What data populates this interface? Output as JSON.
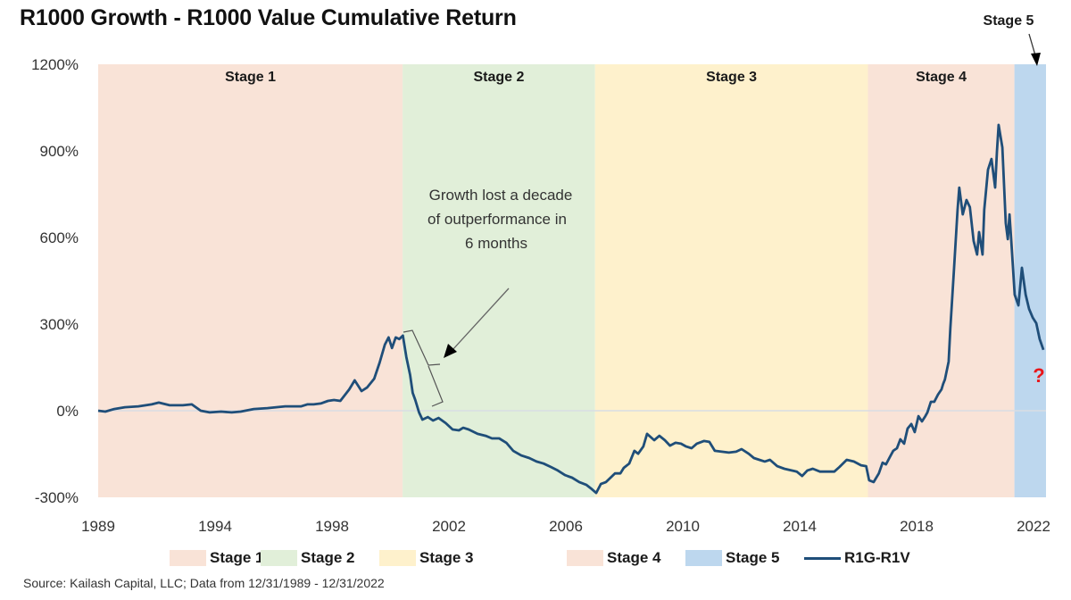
{
  "chart_data": {
    "type": "line",
    "title": "R1000 Growth - R1000 Value Cumulative Return",
    "xlabel": "",
    "ylabel": "",
    "ylim": [
      -300,
      1200
    ],
    "xlim": [
      1989,
      2022
    ],
    "yticks": [
      "1200%",
      "900%",
      "600%",
      "300%",
      "0%",
      "-300%"
    ],
    "ytick_values": [
      1200,
      900,
      600,
      300,
      0,
      -300
    ],
    "xticks": [
      "1989",
      "1994",
      "1998",
      "2002",
      "2006",
      "2010",
      "2014",
      "2018",
      "2022"
    ],
    "grid": false,
    "zero_line": true,
    "legend_position": "bottom",
    "stages": [
      {
        "name": "Stage 1",
        "start": 1989.0,
        "end": 1999.6,
        "color": "#f9e3d7"
      },
      {
        "name": "Stage 2",
        "start": 1999.6,
        "end": 2006.3,
        "color": "#e1efd9"
      },
      {
        "name": "Stage 3",
        "start": 2006.3,
        "end": 2015.8,
        "color": "#fef1cc"
      },
      {
        "name": "Stage 4",
        "start": 2015.8,
        "end": 2020.9,
        "color": "#f9e3d7"
      },
      {
        "name": "Stage 5",
        "start": 2020.9,
        "end": 2022.0,
        "color": "#bdd7ee"
      }
    ],
    "series": [
      {
        "name": "R1G-R1V",
        "color": "#1f4e79",
        "points": [
          [
            1989.0,
            0
          ],
          [
            1989.25,
            -3
          ],
          [
            1989.56,
            6
          ],
          [
            1989.93,
            12
          ],
          [
            1990.4,
            15
          ],
          [
            1990.86,
            22
          ],
          [
            1991.11,
            28
          ],
          [
            1991.49,
            19
          ],
          [
            1991.95,
            19
          ],
          [
            1992.26,
            22
          ],
          [
            1992.57,
            0
          ],
          [
            1992.88,
            -6
          ],
          [
            1993.28,
            -3
          ],
          [
            1993.65,
            -6
          ],
          [
            1993.96,
            -3
          ],
          [
            1994.42,
            6
          ],
          [
            1994.89,
            9
          ],
          [
            1995.2,
            12
          ],
          [
            1995.51,
            15
          ],
          [
            1995.82,
            15
          ],
          [
            1996.07,
            15
          ],
          [
            1996.28,
            22
          ],
          [
            1996.5,
            22
          ],
          [
            1996.75,
            25
          ],
          [
            1997.0,
            34
          ],
          [
            1997.21,
            37
          ],
          [
            1997.43,
            34
          ],
          [
            1997.74,
            74
          ],
          [
            1997.93,
            105
          ],
          [
            1998.05,
            87
          ],
          [
            1998.17,
            68
          ],
          [
            1998.36,
            80
          ],
          [
            1998.61,
            111
          ],
          [
            1998.8,
            167
          ],
          [
            1998.98,
            229
          ],
          [
            1999.11,
            254
          ],
          [
            1999.23,
            217
          ],
          [
            1999.36,
            254
          ],
          [
            1999.48,
            248
          ],
          [
            1999.61,
            260
          ],
          [
            1999.73,
            186
          ],
          [
            1999.86,
            124
          ],
          [
            1999.95,
            62
          ],
          [
            2000.04,
            37
          ],
          [
            2000.17,
            -6
          ],
          [
            2000.29,
            -31
          ],
          [
            2000.48,
            -22
          ],
          [
            2000.66,
            -34
          ],
          [
            2000.85,
            -25
          ],
          [
            2001.1,
            -43
          ],
          [
            2001.34,
            -65
          ],
          [
            2001.56,
            -68
          ],
          [
            2001.71,
            -59
          ],
          [
            2001.9,
            -65
          ],
          [
            2002.21,
            -80
          ],
          [
            2002.49,
            -87
          ],
          [
            2002.71,
            -96
          ],
          [
            2002.96,
            -96
          ],
          [
            2003.21,
            -111
          ],
          [
            2003.45,
            -139
          ],
          [
            2003.73,
            -155
          ],
          [
            2004.01,
            -164
          ],
          [
            2004.26,
            -176
          ],
          [
            2004.51,
            -183
          ],
          [
            2004.76,
            -195
          ],
          [
            2005.0,
            -207
          ],
          [
            2005.25,
            -223
          ],
          [
            2005.5,
            -232
          ],
          [
            2005.75,
            -247
          ],
          [
            2006.0,
            -257
          ],
          [
            2006.19,
            -272
          ],
          [
            2006.34,
            -285
          ],
          [
            2006.5,
            -254
          ],
          [
            2006.68,
            -247
          ],
          [
            2006.87,
            -229
          ],
          [
            2006.99,
            -217
          ],
          [
            2007.18,
            -217
          ],
          [
            2007.3,
            -198
          ],
          [
            2007.49,
            -183
          ],
          [
            2007.67,
            -139
          ],
          [
            2007.8,
            -149
          ],
          [
            2007.98,
            -124
          ],
          [
            2008.11,
            -80
          ],
          [
            2008.36,
            -102
          ],
          [
            2008.54,
            -87
          ],
          [
            2008.73,
            -102
          ],
          [
            2008.91,
            -121
          ],
          [
            2009.1,
            -111
          ],
          [
            2009.29,
            -114
          ],
          [
            2009.47,
            -124
          ],
          [
            2009.66,
            -130
          ],
          [
            2009.84,
            -114
          ],
          [
            2010.09,
            -105
          ],
          [
            2010.28,
            -108
          ],
          [
            2010.47,
            -139
          ],
          [
            2010.71,
            -142
          ],
          [
            2010.96,
            -145
          ],
          [
            2011.21,
            -142
          ],
          [
            2011.4,
            -133
          ],
          [
            2011.65,
            -149
          ],
          [
            2011.83,
            -164
          ],
          [
            2012.02,
            -170
          ],
          [
            2012.21,
            -176
          ],
          [
            2012.39,
            -170
          ],
          [
            2012.64,
            -192
          ],
          [
            2012.89,
            -201
          ],
          [
            2013.14,
            -207
          ],
          [
            2013.32,
            -211
          ],
          [
            2013.51,
            -226
          ],
          [
            2013.69,
            -207
          ],
          [
            2013.88,
            -201
          ],
          [
            2014.13,
            -211
          ],
          [
            2014.38,
            -211
          ],
          [
            2014.63,
            -211
          ],
          [
            2014.81,
            -195
          ],
          [
            2015.06,
            -170
          ],
          [
            2015.31,
            -176
          ],
          [
            2015.56,
            -189
          ],
          [
            2015.74,
            -192
          ],
          [
            2015.84,
            -241
          ],
          [
            2016.0,
            -247
          ],
          [
            2016.18,
            -217
          ],
          [
            2016.31,
            -180
          ],
          [
            2016.43,
            -186
          ],
          [
            2016.56,
            -161
          ],
          [
            2016.68,
            -139
          ],
          [
            2016.81,
            -130
          ],
          [
            2016.93,
            -99
          ],
          [
            2017.06,
            -114
          ],
          [
            2017.18,
            -62
          ],
          [
            2017.31,
            -46
          ],
          [
            2017.43,
            -74
          ],
          [
            2017.56,
            -19
          ],
          [
            2017.68,
            -37
          ],
          [
            2017.8,
            -19
          ],
          [
            2017.87,
            -6
          ],
          [
            2017.99,
            31
          ],
          [
            2018.11,
            31
          ],
          [
            2018.24,
            56
          ],
          [
            2018.36,
            74
          ],
          [
            2018.42,
            93
          ],
          [
            2018.48,
            108
          ],
          [
            2018.61,
            170
          ],
          [
            2018.67,
            285
          ],
          [
            2018.8,
            495
          ],
          [
            2018.92,
            696
          ],
          [
            2018.98,
            773
          ],
          [
            2019.1,
            680
          ],
          [
            2019.23,
            730
          ],
          [
            2019.35,
            705
          ],
          [
            2019.48,
            588
          ],
          [
            2019.6,
            541
          ],
          [
            2019.67,
            619
          ],
          [
            2019.79,
            541
          ],
          [
            2019.85,
            696
          ],
          [
            2019.98,
            835
          ],
          [
            2020.1,
            872
          ],
          [
            2020.23,
            773
          ],
          [
            2020.29,
            897
          ],
          [
            2020.35,
            990
          ],
          [
            2020.48,
            912
          ],
          [
            2020.6,
            650
          ],
          [
            2020.67,
            594
          ],
          [
            2020.73,
            680
          ],
          [
            2020.79,
            588
          ],
          [
            2020.91,
            402
          ],
          [
            2021.04,
            365
          ],
          [
            2021.16,
            495
          ],
          [
            2021.29,
            402
          ],
          [
            2021.41,
            353
          ],
          [
            2021.54,
            322
          ],
          [
            2021.66,
            303
          ],
          [
            2021.78,
            248
          ],
          [
            2021.91,
            211
          ]
        ]
      }
    ],
    "annotations": {
      "callout_lines": [
        "Growth lost a decade",
        "of outperformance  in",
        "6 months"
      ],
      "stage5_callout": "Stage 5",
      "question_mark": "?"
    }
  },
  "legend": [
    {
      "label": "Stage 1",
      "type": "swatch",
      "color": "#f9e3d7"
    },
    {
      "label": "Stage 2",
      "type": "swatch",
      "color": "#e1efd9"
    },
    {
      "label": "Stage 3",
      "type": "swatch",
      "color": "#fef1cc"
    },
    {
      "label": "Stage 4",
      "type": "swatch",
      "color": "#f9e3d7"
    },
    {
      "label": "Stage 5",
      "type": "swatch",
      "color": "#bdd7ee"
    },
    {
      "label": "R1G-R1V",
      "type": "line",
      "color": "#1f4e79"
    }
  ],
  "source": "Source: Kailash Capital, LLC; Data from 12/31/1989 - 12/31/2022"
}
